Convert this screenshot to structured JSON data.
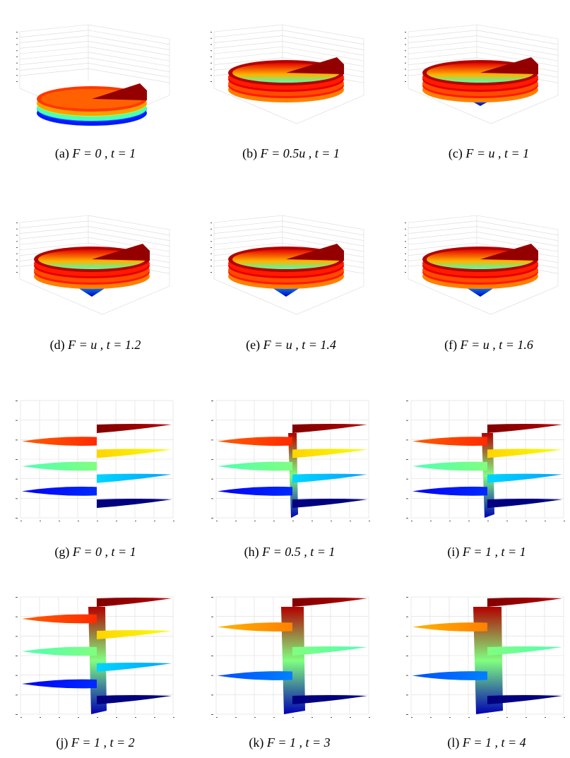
{
  "figure": {
    "panels": [
      {
        "id": "a",
        "kind": "disc",
        "spread": 0,
        "cone": 0,
        "caption": {
          "label": "(a)",
          "math": "F = 0 , t = 1"
        }
      },
      {
        "id": "b",
        "kind": "disc",
        "spread": 1,
        "cone": 0.3,
        "caption": {
          "label": "(b)",
          "math": "F = 0.5u , t = 1"
        }
      },
      {
        "id": "c",
        "kind": "disc",
        "spread": 2,
        "cone": 1,
        "caption": {
          "label": "(c)",
          "math": "F = u , t = 1"
        }
      },
      {
        "id": "d",
        "kind": "disc",
        "spread": 2,
        "cone": 1.2,
        "caption": {
          "label": "(d)",
          "math": "F = u , t = 1.2"
        }
      },
      {
        "id": "e",
        "kind": "disc",
        "spread": 2,
        "cone": 1.4,
        "caption": {
          "label": "(e)",
          "math": "F = u , t = 1.4"
        }
      },
      {
        "id": "f",
        "kind": "disc",
        "spread": 2,
        "cone": 1.6,
        "caption": {
          "label": "(f)",
          "math": "F = u , t = 1.6"
        }
      },
      {
        "id": "g",
        "kind": "side",
        "stem": 0,
        "caption": {
          "label": "(g)",
          "math": "F = 0 , t = 1"
        }
      },
      {
        "id": "h",
        "kind": "side",
        "stem": 0.5,
        "caption": {
          "label": "(h)",
          "math": "F = 0.5 , t = 1"
        }
      },
      {
        "id": "i",
        "kind": "side",
        "stem": 1,
        "caption": {
          "label": "(i)",
          "math": "F = 1 , t = 1"
        }
      },
      {
        "id": "j",
        "kind": "side",
        "stem": 2,
        "caption": {
          "label": "(j)",
          "math": "F = 1 , t = 2"
        }
      },
      {
        "id": "k",
        "kind": "side",
        "stem": 3,
        "caption": {
          "label": "(k)",
          "math": "F = 1 , t = 3"
        }
      },
      {
        "id": "l",
        "kind": "side",
        "stem": 4,
        "caption": {
          "label": "(l)",
          "math": "F = 1 , t = 4"
        }
      }
    ]
  }
}
